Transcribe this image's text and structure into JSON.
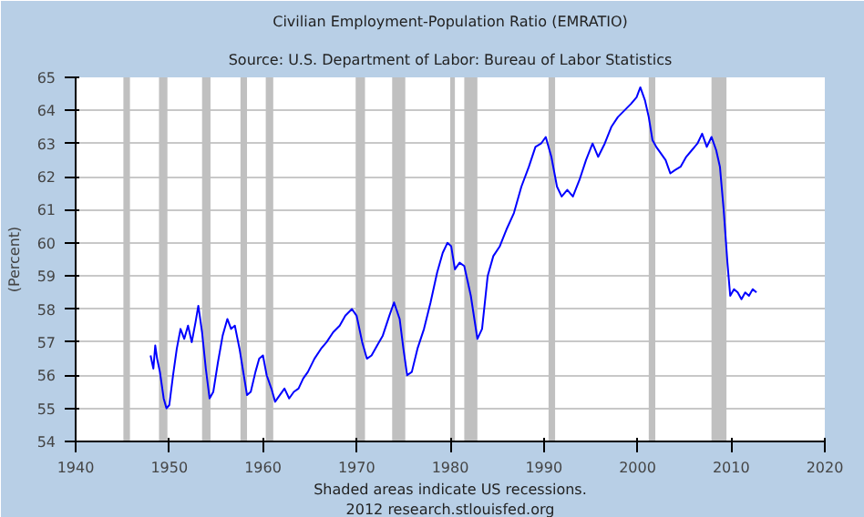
{
  "chart_data": {
    "type": "line",
    "title": "Civilian Employment-Population Ratio (EMRATIO)",
    "subtitle": "Source: U.S. Department of Labor: Bureau of Labor Statistics",
    "ylabel": "(Percent)",
    "x": [
      1948.0,
      1948.3,
      1948.5,
      1948.7,
      1949.0,
      1949.4,
      1949.7,
      1950.0,
      1950.4,
      1950.8,
      1951.2,
      1951.6,
      1952.0,
      1952.4,
      1952.8,
      1953.1,
      1953.5,
      1953.9,
      1954.3,
      1954.7,
      1955.2,
      1955.7,
      1956.2,
      1956.6,
      1957.0,
      1957.5,
      1957.9,
      1958.3,
      1958.7,
      1959.2,
      1959.6,
      1960.0,
      1960.4,
      1960.9,
      1961.3,
      1961.8,
      1962.3,
      1962.8,
      1963.3,
      1963.8,
      1964.3,
      1964.8,
      1965.5,
      1966.2,
      1966.8,
      1967.5,
      1968.2,
      1968.8,
      1969.5,
      1970.0,
      1970.6,
      1971.1,
      1971.6,
      1972.2,
      1972.8,
      1973.5,
      1974.0,
      1974.6,
      1975.0,
      1975.4,
      1975.9,
      1976.5,
      1977.2,
      1977.9,
      1978.6,
      1979.2,
      1979.7,
      1980.1,
      1980.5,
      1981.0,
      1981.5,
      1982.2,
      1982.9,
      1983.4,
      1984.0,
      1984.6,
      1985.3,
      1986.0,
      1986.8,
      1987.6,
      1988.4,
      1989.1,
      1989.7,
      1990.2,
      1990.8,
      1991.4,
      1991.9,
      1992.5,
      1993.1,
      1993.8,
      1994.5,
      1995.2,
      1995.8,
      1996.5,
      1997.2,
      1997.9,
      1998.6,
      1999.3,
      1999.9,
      2000.3,
      2000.8,
      2001.2,
      2001.6,
      2002.0,
      2002.5,
      2003.0,
      2003.5,
      2004.0,
      2004.6,
      2005.2,
      2005.8,
      2006.4,
      2006.9,
      2007.4,
      2007.9,
      2008.4,
      2008.8,
      2009.2,
      2009.6,
      2009.9,
      2010.3,
      2010.7,
      2011.1,
      2011.5,
      2011.9,
      2012.3,
      2012.7
    ],
    "values": [
      56.6,
      56.2,
      56.9,
      56.5,
      56.1,
      55.3,
      55.0,
      55.1,
      56.0,
      56.8,
      57.4,
      57.1,
      57.5,
      57.0,
      57.6,
      58.1,
      57.3,
      56.2,
      55.3,
      55.5,
      56.4,
      57.2,
      57.7,
      57.4,
      57.5,
      56.8,
      56.1,
      55.4,
      55.5,
      56.1,
      56.5,
      56.6,
      56.0,
      55.6,
      55.2,
      55.4,
      55.6,
      55.3,
      55.5,
      55.6,
      55.9,
      56.1,
      56.5,
      56.8,
      57.0,
      57.3,
      57.5,
      57.8,
      58.0,
      57.8,
      57.0,
      56.5,
      56.6,
      56.9,
      57.2,
      57.8,
      58.2,
      57.7,
      56.8,
      56.0,
      56.1,
      56.8,
      57.4,
      58.2,
      59.1,
      59.7,
      60.0,
      59.9,
      59.2,
      59.4,
      59.3,
      58.4,
      57.1,
      57.4,
      59.0,
      59.6,
      59.9,
      60.4,
      60.9,
      61.7,
      62.3,
      62.9,
      63.0,
      63.2,
      62.6,
      61.7,
      61.4,
      61.6,
      61.4,
      61.9,
      62.5,
      63.0,
      62.6,
      63.0,
      63.5,
      63.8,
      64.0,
      64.2,
      64.4,
      64.7,
      64.3,
      63.8,
      63.1,
      62.9,
      62.7,
      62.5,
      62.1,
      62.2,
      62.3,
      62.6,
      62.8,
      63.0,
      63.3,
      62.9,
      63.2,
      62.8,
      62.3,
      61.0,
      59.4,
      58.4,
      58.6,
      58.5,
      58.3,
      58.5,
      58.4,
      58.6,
      58.5
    ],
    "color": "#0000ff",
    "xlim": [
      1940,
      2020
    ],
    "ylim": [
      54,
      65
    ],
    "xticks": [
      1940,
      1950,
      1960,
      1970,
      1980,
      1990,
      2000,
      2010,
      2020
    ],
    "yticks": [
      54,
      55,
      56,
      57,
      58,
      59,
      60,
      61,
      62,
      63,
      64,
      65
    ],
    "grid": "y",
    "bands": [
      {
        "axis": "x",
        "from": 1945.1,
        "to": 1945.8,
        "color": "#c0c0c0"
      },
      {
        "axis": "x",
        "from": 1948.9,
        "to": 1949.8,
        "color": "#c0c0c0"
      },
      {
        "axis": "x",
        "from": 1953.5,
        "to": 1954.4,
        "color": "#c0c0c0"
      },
      {
        "axis": "x",
        "from": 1957.6,
        "to": 1958.3,
        "color": "#c0c0c0"
      },
      {
        "axis": "x",
        "from": 1960.3,
        "to": 1961.1,
        "color": "#c0c0c0"
      },
      {
        "axis": "x",
        "from": 1969.9,
        "to": 1970.9,
        "color": "#c0c0c0"
      },
      {
        "axis": "x",
        "from": 1973.8,
        "to": 1975.2,
        "color": "#c0c0c0"
      },
      {
        "axis": "x",
        "from": 1980.0,
        "to": 1980.5,
        "color": "#c0c0c0"
      },
      {
        "axis": "x",
        "from": 1981.5,
        "to": 1982.9,
        "color": "#c0c0c0"
      },
      {
        "axis": "x",
        "from": 1990.5,
        "to": 1991.2,
        "color": "#c0c0c0"
      },
      {
        "axis": "x",
        "from": 2001.2,
        "to": 2001.9,
        "color": "#c0c0c0"
      },
      {
        "axis": "x",
        "from": 2007.9,
        "to": 2009.5,
        "color": "#c0c0c0"
      }
    ],
    "annotations": [
      "Shaded areas indicate US recessions.",
      "2012 research.stlouisfed.org"
    ]
  }
}
